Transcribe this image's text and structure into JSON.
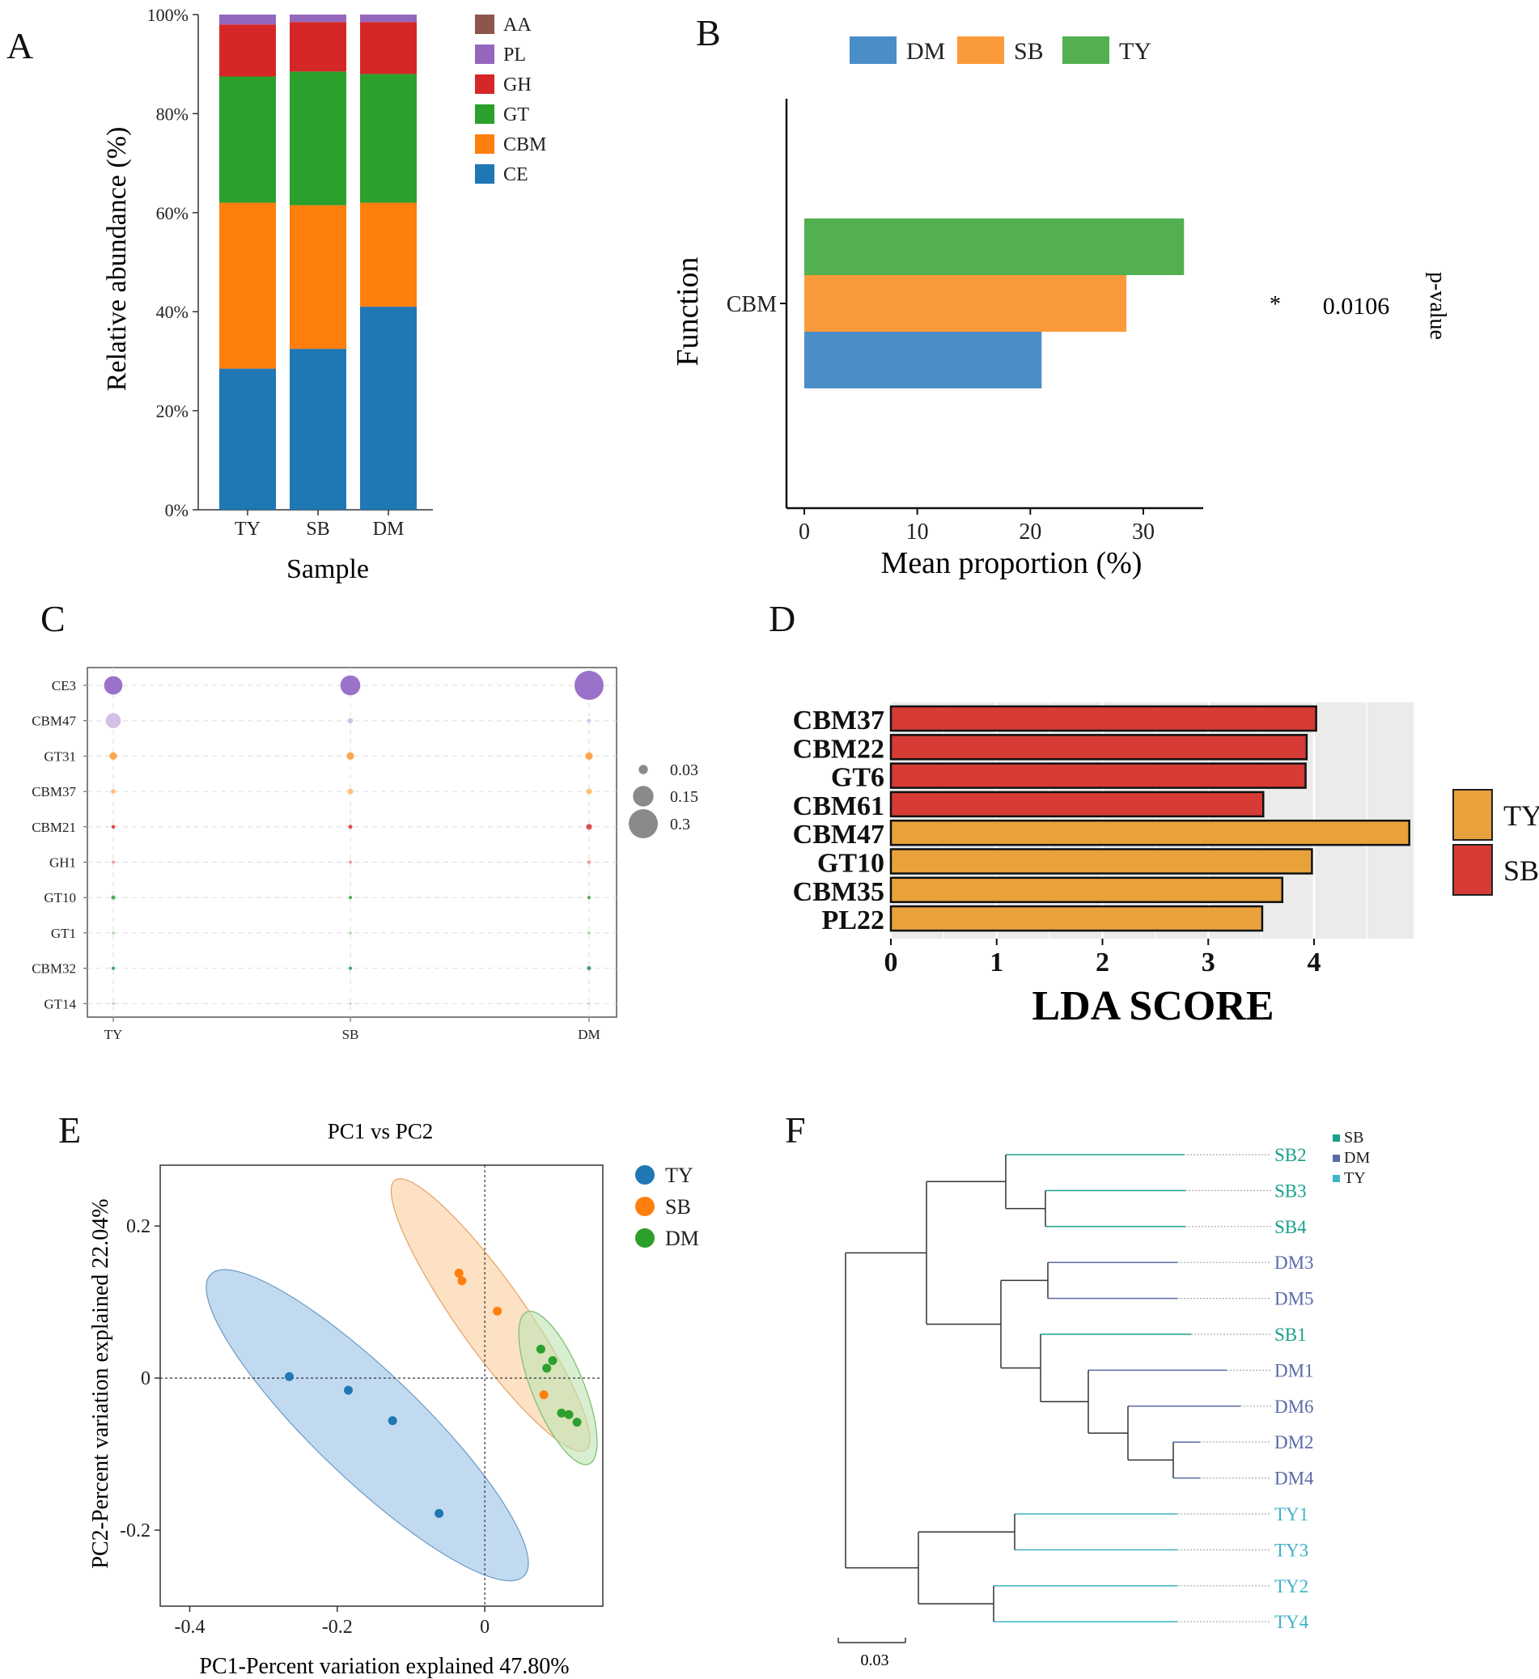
{
  "chart_data": [
    {
      "panel": "A",
      "type": "bar",
      "stacked": true,
      "categories": [
        "TY",
        "SB",
        "DM"
      ],
      "series": [
        {
          "name": "CE",
          "color": "#1f77b4",
          "values": [
            28.5,
            32.5,
            41.0
          ]
        },
        {
          "name": "CBM",
          "color": "#ff7f0e",
          "values": [
            33.5,
            29.0,
            21.0
          ]
        },
        {
          "name": "GT",
          "color": "#2ca02c",
          "values": [
            25.5,
            27.0,
            26.0
          ]
        },
        {
          "name": "GH",
          "color": "#d62728",
          "values": [
            10.5,
            10.0,
            10.5
          ]
        },
        {
          "name": "PL",
          "color": "#9467bd",
          "values": [
            2.0,
            1.5,
            1.5
          ]
        },
        {
          "name": "AA",
          "color": "#8c564b",
          "values": [
            0.0,
            0.0,
            0.0
          ]
        }
      ],
      "legend": [
        "AA",
        "PL",
        "GH",
        "GT",
        "CBM",
        "CE"
      ],
      "yticks": [
        "0%",
        "20%",
        "40%",
        "60%",
        "80%",
        "100%"
      ],
      "ylim": [
        0,
        100
      ],
      "xlabel": "Sample",
      "ylabel": "Relative abundance (%)"
    },
    {
      "panel": "B",
      "type": "bar",
      "orientation": "horizontal",
      "categories": [
        "CBM"
      ],
      "series": [
        {
          "name": "DM",
          "color": "#4a8ec8",
          "values": [
            21
          ]
        },
        {
          "name": "SB",
          "color": "#fa9a3a",
          "values": [
            28.5
          ]
        },
        {
          "name": "TY",
          "color": "#52b050",
          "values": [
            33.6
          ]
        }
      ],
      "xticks": [
        "0",
        "10",
        "20",
        "30"
      ],
      "xlim": [
        0,
        35
      ],
      "xlabel": "Mean proportion (%)",
      "ylabel": "Function",
      "significance": "*",
      "p_value": "0.0106",
      "p_value_label": "p-value"
    },
    {
      "panel": "C",
      "type": "scatter",
      "subtype": "bubble",
      "x": [
        "TY",
        "SB",
        "DM"
      ],
      "rows": [
        {
          "name": "CE3",
          "color": "#9b72c9",
          "values": [
            0.12,
            0.14,
            0.3
          ]
        },
        {
          "name": "CBM47",
          "color": "#d4c0e6",
          "values": [
            0.08,
            0.01,
            0.005
          ]
        },
        {
          "name": "GT31",
          "color": "#ffa64d",
          "values": [
            0.02,
            0.02,
            0.02
          ]
        },
        {
          "name": "CBM37",
          "color": "#ffc080",
          "values": [
            0.008,
            0.012,
            0.012
          ]
        },
        {
          "name": "CBM21",
          "color": "#e05050",
          "values": [
            0.005,
            0.006,
            0.012
          ]
        },
        {
          "name": "GH1",
          "color": "#f0a0a0",
          "values": [
            0.004,
            0.004,
            0.005
          ]
        },
        {
          "name": "GT10",
          "color": "#4caf50",
          "values": [
            0.006,
            0.004,
            0.004
          ]
        },
        {
          "name": "GT1",
          "color": "#a8d8a0",
          "values": [
            0.003,
            0.003,
            0.003
          ]
        },
        {
          "name": "CBM32",
          "color": "#4a9a8a",
          "values": [
            0.004,
            0.004,
            0.006
          ]
        },
        {
          "name": "GT14",
          "color": "#b8dcc0",
          "values": [
            0.003,
            0.002,
            0.002
          ]
        }
      ],
      "size_legend": [
        "0.03",
        "0.15",
        "0.3"
      ]
    },
    {
      "panel": "D",
      "type": "bar",
      "orientation": "horizontal",
      "categories": [
        "CBM37",
        "CBM22",
        "GT6",
        "CBM61",
        "CBM47",
        "GT10",
        "CBM35",
        "PL22"
      ],
      "values": [
        4.02,
        3.93,
        3.92,
        3.52,
        4.9,
        3.98,
        3.7,
        3.51
      ],
      "groups": [
        "SB",
        "SB",
        "SB",
        "SB",
        "TY",
        "TY",
        "TY",
        "TY"
      ],
      "group_colors": {
        "TY": "#e9a13b",
        "SB": "#d63b35"
      },
      "legend": [
        "TY",
        "SB"
      ],
      "xticks": [
        "0",
        "1",
        "2",
        "3",
        "4"
      ],
      "xlim": [
        0,
        4.9
      ],
      "xlabel": "LDA SCORE"
    },
    {
      "panel": "E",
      "type": "scatter",
      "title": "PC1 vs PC2",
      "xlabel": "PC1-Percent variation explained 47.80%",
      "ylabel": "PC2-Percent variation explained 22.04%",
      "xticks": [
        "-0.4",
        "-0.2",
        "0"
      ],
      "yticks": [
        "-0.2",
        "0",
        "0.2"
      ],
      "xlim": [
        -0.44,
        0.16
      ],
      "ylim": [
        -0.3,
        0.28
      ],
      "series": [
        {
          "name": "TY",
          "color": "#1f77b4",
          "points": [
            [
              -0.265,
              0.002
            ],
            [
              -0.185,
              -0.016
            ],
            [
              -0.125,
              -0.056
            ],
            [
              -0.062,
              -0.178
            ]
          ]
        },
        {
          "name": "SB",
          "color": "#ff7f0e",
          "points": [
            [
              -0.035,
              0.138
            ],
            [
              -0.031,
              0.128
            ],
            [
              0.017,
              0.088
            ],
            [
              0.08,
              -0.022
            ]
          ]
        },
        {
          "name": "DM",
          "color": "#2ca02c",
          "points": [
            [
              0.076,
              0.038
            ],
            [
              0.084,
              0.013
            ],
            [
              0.092,
              0.023
            ],
            [
              0.104,
              -0.046
            ],
            [
              0.114,
              -0.048
            ],
            [
              0.125,
              -0.058
            ]
          ]
        }
      ]
    },
    {
      "panel": "F",
      "type": "dendrogram",
      "leaves": [
        {
          "name": "SB2",
          "group": "SB"
        },
        {
          "name": "SB3",
          "group": "SB"
        },
        {
          "name": "SB4",
          "group": "SB"
        },
        {
          "name": "DM3",
          "group": "DM"
        },
        {
          "name": "DM5",
          "group": "DM"
        },
        {
          "name": "SB1",
          "group": "SB"
        },
        {
          "name": "DM1",
          "group": "DM"
        },
        {
          "name": "DM6",
          "group": "DM"
        },
        {
          "name": "DM2",
          "group": "DM"
        },
        {
          "name": "DM4",
          "group": "DM"
        },
        {
          "name": "TY1",
          "group": "TY"
        },
        {
          "name": "TY3",
          "group": "TY"
        },
        {
          "name": "TY2",
          "group": "TY"
        },
        {
          "name": "TY4",
          "group": "TY"
        }
      ],
      "group_colors": {
        "SB": "#1aa08a",
        "DM": "#5a6aa8",
        "TY": "#3fb3c8"
      },
      "legend": [
        "SB",
        "DM",
        "TY"
      ],
      "scale_label": "0.03"
    }
  ],
  "panel_labels": [
    "A",
    "B",
    "C",
    "D",
    "E",
    "F"
  ]
}
